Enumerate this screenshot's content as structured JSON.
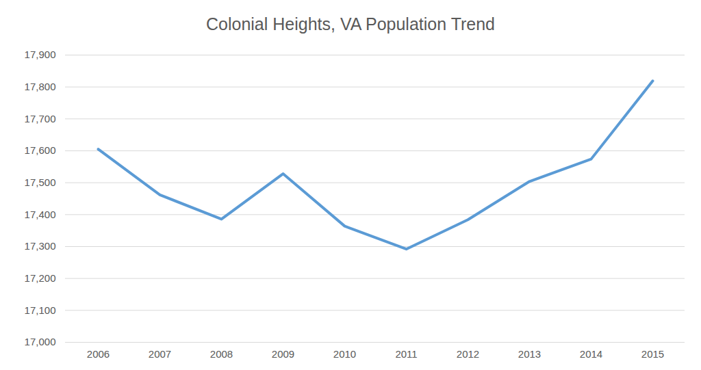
{
  "chart_data": {
    "type": "line",
    "title": "Colonial Heights, VA Population Trend",
    "categories": [
      "2006",
      "2007",
      "2008",
      "2009",
      "2010",
      "2011",
      "2012",
      "2013",
      "2014",
      "2015"
    ],
    "values": [
      17605,
      17462,
      17386,
      17528,
      17364,
      17292,
      17384,
      17504,
      17574,
      17819
    ],
    "color": "#5b9bd5",
    "ylim": [
      17000,
      17900
    ],
    "yticks": [
      {
        "value": 17000,
        "label": "17,000"
      },
      {
        "value": 17100,
        "label": "17,100"
      },
      {
        "value": 17200,
        "label": "17,200"
      },
      {
        "value": 17300,
        "label": "17,300"
      },
      {
        "value": 17400,
        "label": "17,400"
      },
      {
        "value": 17500,
        "label": "17,500"
      },
      {
        "value": 17600,
        "label": "17,600"
      },
      {
        "value": 17700,
        "label": "17,700"
      },
      {
        "value": 17800,
        "label": "17,800"
      },
      {
        "value": 17900,
        "label": "17,900"
      }
    ],
    "grid": true
  }
}
